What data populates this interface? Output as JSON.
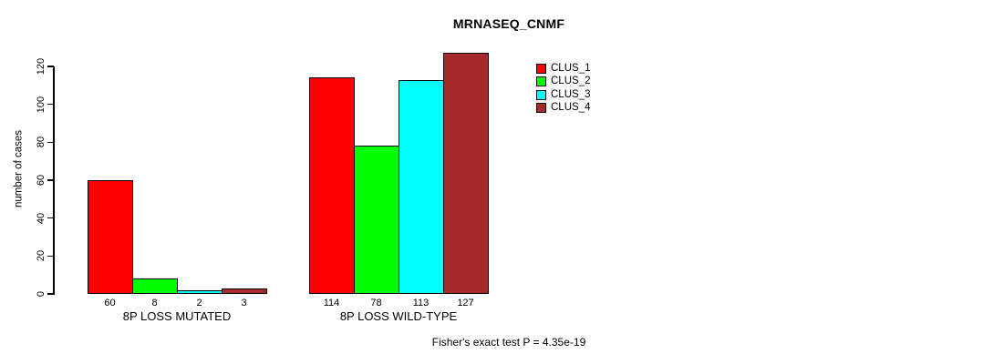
{
  "title": "MRNASEQ_CNMF",
  "y_axis": {
    "label": "number of cases",
    "ticks": [
      0,
      20,
      40,
      60,
      80,
      100,
      120
    ]
  },
  "legend": {
    "items": [
      {
        "label": "CLUS_1",
        "color": "#ff0000"
      },
      {
        "label": "CLUS_2",
        "color": "#00ff00"
      },
      {
        "label": "CLUS_3",
        "color": "#00ffff"
      },
      {
        "label": "CLUS_4",
        "color": "#a52a2a"
      }
    ]
  },
  "annotation": "Fisher's exact test P = 4.35e-19",
  "chart_data": {
    "type": "bar",
    "title": "MRNASEQ_CNMF",
    "xlabel": "",
    "ylabel": "number of cases",
    "ylim": [
      0,
      130
    ],
    "yticks": [
      0,
      20,
      40,
      60,
      80,
      100,
      120
    ],
    "grid": false,
    "legend_position": "top-right",
    "bar_value_labels": true,
    "categories": [
      "8P LOSS MUTATED",
      "8P LOSS WILD-TYPE"
    ],
    "series": [
      {
        "name": "CLUS_1",
        "color": "#ff0000",
        "values": [
          60,
          114
        ]
      },
      {
        "name": "CLUS_2",
        "color": "#00ff00",
        "values": [
          8,
          78
        ]
      },
      {
        "name": "CLUS_3",
        "color": "#00ffff",
        "values": [
          2,
          113
        ]
      },
      {
        "name": "CLUS_4",
        "color": "#a52a2a",
        "values": [
          3,
          127
        ]
      }
    ],
    "group_value_labels": [
      [
        "60",
        "8",
        "2",
        "3"
      ],
      [
        "114",
        "78",
        "113",
        "127"
      ]
    ],
    "annotation": "Fisher's exact test P = 4.35e-19"
  }
}
